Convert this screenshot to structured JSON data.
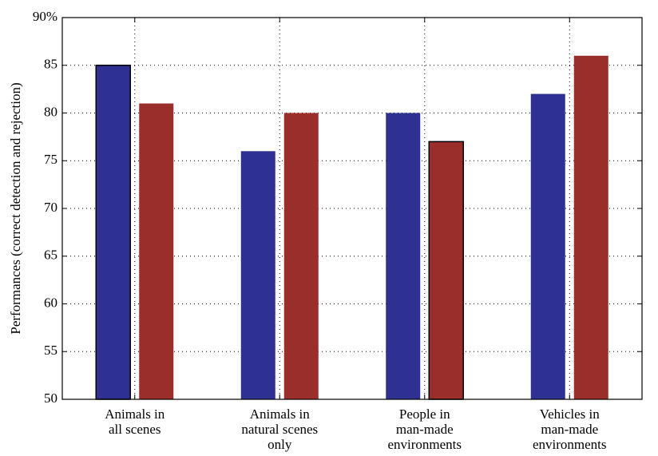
{
  "chart_data": {
    "type": "bar",
    "ylabel": "Performances (correct detection and rejection)",
    "ylim": [
      50,
      90
    ],
    "yticks": [
      50,
      55,
      60,
      65,
      70,
      75,
      80,
      85,
      90
    ],
    "ytick_labels": [
      "50",
      "55",
      "60",
      "65",
      "70",
      "75",
      "80",
      "85",
      "90%"
    ],
    "grid": true,
    "categories": [
      [
        "Animals in",
        "all scenes"
      ],
      [
        "Animals in",
        "natural scenes",
        "only"
      ],
      [
        "People in",
        "man-made",
        "environments"
      ],
      [
        "Vehicles in",
        "man-made",
        "environments"
      ]
    ],
    "series": [
      {
        "color": "#2e3192",
        "values": [
          85,
          76,
          80,
          82
        ],
        "outlined": [
          true,
          false,
          false,
          false
        ]
      },
      {
        "color": "#9a2e2a",
        "values": [
          81,
          80,
          77,
          86
        ],
        "outlined": [
          false,
          false,
          true,
          false
        ]
      }
    ]
  }
}
